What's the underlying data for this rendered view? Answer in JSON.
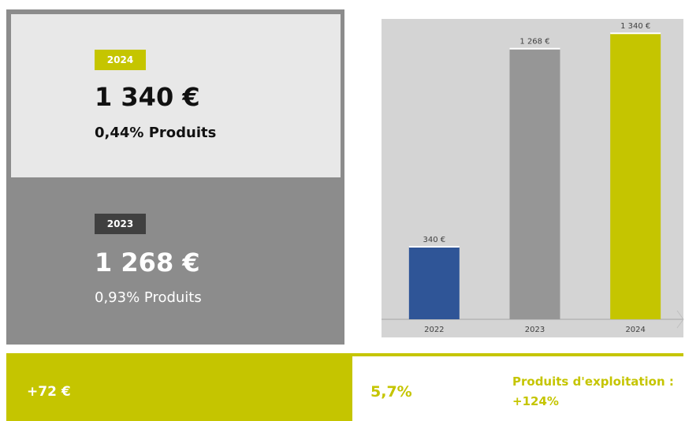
{
  "cards": [
    {
      "year": "2024",
      "amount": "1 340 €",
      "share": "0,44% Produits"
    },
    {
      "year": "2023",
      "amount": "1 268 €",
      "share": "0,93% Produits"
    }
  ],
  "footer": {
    "difference": "+72 €",
    "rate": "5,7%",
    "products": "Produits d'exploitation : +124%"
  },
  "chart_data": {
    "type": "bar",
    "categories": [
      "2022",
      "2023",
      "2024"
    ],
    "values": [
      340,
      1268,
      1340
    ],
    "value_labels": [
      "340 €",
      "1 268 €",
      "1 340 €"
    ],
    "colors": [
      "#2f5597",
      "#969696",
      "#c5c500"
    ],
    "ylim": [
      0,
      1400
    ]
  }
}
